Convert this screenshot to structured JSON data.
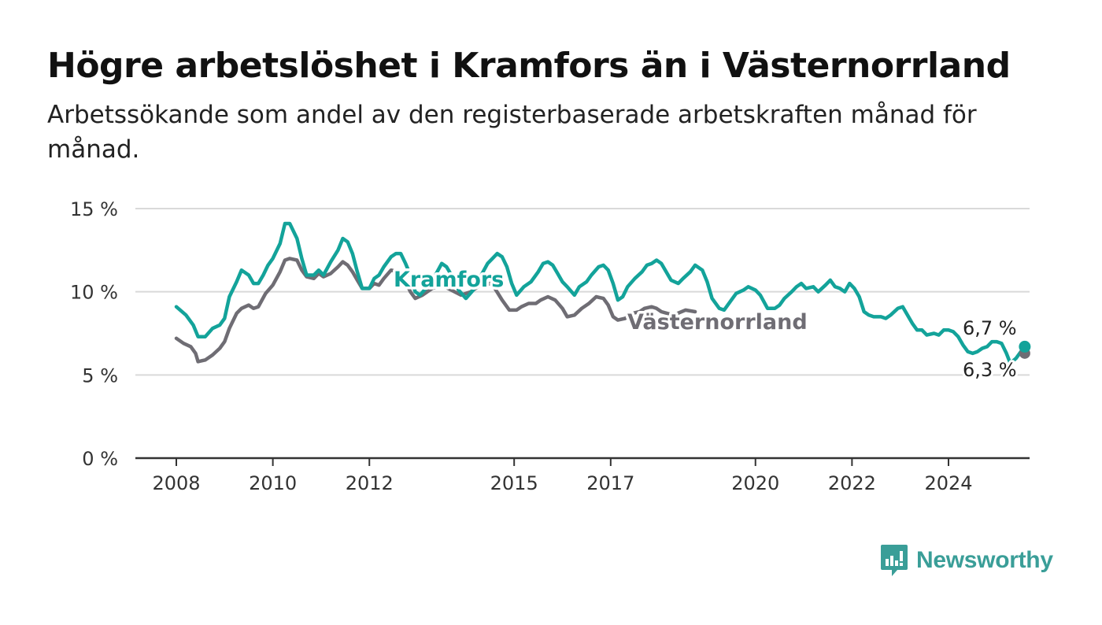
{
  "title": "Högre arbetslöshet i Kramfors än i Västernorrland",
  "subtitle": "Arbetssökande som andel av den registerbaserade arbetskraften månad för månad.",
  "brand": "Newsworthy",
  "colors": {
    "kramfors": "#13a39a",
    "vasternorrland": "#6f6d74",
    "grid": "#d9d9d9",
    "axis": "#333333",
    "brand": "#3a9e98"
  },
  "chart_data": {
    "type": "line",
    "x_unit": "year (decimal, monthly data)",
    "y_ticks": [
      0,
      5,
      10,
      15
    ],
    "y_tick_labels": [
      "0 %",
      "5 %",
      "10 %",
      "15 %"
    ],
    "x_ticks": [
      2008,
      2010,
      2012,
      2015,
      2017,
      2020,
      2022,
      2024
    ],
    "x_tick_labels": [
      "2008",
      "2010",
      "2012",
      "2015",
      "2017",
      "2020",
      "2022",
      "2024"
    ],
    "ylim": [
      0,
      15
    ],
    "xlim": [
      2007.2,
      2025.7
    ],
    "grid": "horizontal",
    "series": [
      {
        "name": "Kramfors",
        "color_key": "kramfors",
        "end_label": "6,7 %",
        "points": [
          [
            2008.0,
            9.1
          ],
          [
            2008.2,
            8.6
          ],
          [
            2008.35,
            8.0
          ],
          [
            2008.45,
            7.3
          ],
          [
            2008.6,
            7.3
          ],
          [
            2008.75,
            7.8
          ],
          [
            2008.9,
            8.0
          ],
          [
            2009.0,
            8.4
          ],
          [
            2009.1,
            9.7
          ],
          [
            2009.25,
            10.6
          ],
          [
            2009.35,
            11.3
          ],
          [
            2009.5,
            11.0
          ],
          [
            2009.6,
            10.5
          ],
          [
            2009.7,
            10.5
          ],
          [
            2009.8,
            11.0
          ],
          [
            2009.9,
            11.6
          ],
          [
            2010.0,
            12.0
          ],
          [
            2010.15,
            12.9
          ],
          [
            2010.25,
            14.1
          ],
          [
            2010.35,
            14.1
          ],
          [
            2010.5,
            13.2
          ],
          [
            2010.6,
            12.0
          ],
          [
            2010.7,
            11.0
          ],
          [
            2010.85,
            11.0
          ],
          [
            2010.95,
            11.3
          ],
          [
            2011.05,
            11.0
          ],
          [
            2011.2,
            11.8
          ],
          [
            2011.35,
            12.5
          ],
          [
            2011.45,
            13.2
          ],
          [
            2011.55,
            13.0
          ],
          [
            2011.65,
            12.3
          ],
          [
            2011.75,
            11.2
          ],
          [
            2011.85,
            10.2
          ],
          [
            2012.0,
            10.2
          ],
          [
            2012.1,
            10.8
          ],
          [
            2012.2,
            11.0
          ],
          [
            2012.3,
            11.5
          ],
          [
            2012.45,
            12.1
          ],
          [
            2012.55,
            12.3
          ],
          [
            2012.65,
            12.3
          ],
          [
            2012.75,
            11.7
          ],
          [
            2012.85,
            11.0
          ],
          [
            2012.95,
            10.0
          ],
          [
            2013.05,
            9.8
          ],
          [
            2013.2,
            10.3
          ],
          [
            2013.35,
            10.9
          ],
          [
            2013.5,
            11.7
          ],
          [
            2013.6,
            11.5
          ],
          [
            2013.7,
            11.0
          ],
          [
            2013.85,
            10.1
          ],
          [
            2014.0,
            9.6
          ],
          [
            2014.15,
            10.1
          ],
          [
            2014.3,
            10.9
          ],
          [
            2014.45,
            11.7
          ],
          [
            2014.55,
            12.0
          ],
          [
            2014.65,
            12.3
          ],
          [
            2014.75,
            12.1
          ],
          [
            2014.85,
            11.5
          ],
          [
            2014.95,
            10.5
          ],
          [
            2015.05,
            9.8
          ],
          [
            2015.2,
            10.3
          ],
          [
            2015.35,
            10.6
          ],
          [
            2015.5,
            11.2
          ],
          [
            2015.6,
            11.7
          ],
          [
            2015.7,
            11.8
          ],
          [
            2015.8,
            11.6
          ],
          [
            2015.9,
            11.1
          ],
          [
            2016.0,
            10.6
          ],
          [
            2016.1,
            10.3
          ],
          [
            2016.25,
            9.8
          ],
          [
            2016.35,
            10.3
          ],
          [
            2016.5,
            10.6
          ],
          [
            2016.6,
            11.0
          ],
          [
            2016.75,
            11.5
          ],
          [
            2016.85,
            11.6
          ],
          [
            2016.95,
            11.3
          ],
          [
            2017.05,
            10.5
          ],
          [
            2017.15,
            9.5
          ],
          [
            2017.25,
            9.7
          ],
          [
            2017.35,
            10.3
          ],
          [
            2017.5,
            10.8
          ],
          [
            2017.65,
            11.2
          ],
          [
            2017.75,
            11.6
          ],
          [
            2017.85,
            11.7
          ],
          [
            2017.95,
            11.9
          ],
          [
            2018.05,
            11.7
          ],
          [
            2018.15,
            11.2
          ],
          [
            2018.25,
            10.7
          ],
          [
            2018.4,
            10.5
          ],
          [
            2018.5,
            10.8
          ],
          [
            2018.65,
            11.2
          ],
          [
            2018.75,
            11.6
          ],
          [
            2018.9,
            11.3
          ],
          [
            2019.0,
            10.6
          ],
          [
            2019.1,
            9.6
          ],
          [
            2019.25,
            9.0
          ],
          [
            2019.35,
            8.9
          ],
          [
            2019.5,
            9.5
          ],
          [
            2019.6,
            9.9
          ],
          [
            2019.75,
            10.1
          ],
          [
            2019.85,
            10.3
          ],
          [
            2020.0,
            10.1
          ],
          [
            2020.1,
            9.8
          ],
          [
            2020.25,
            9.0
          ],
          [
            2020.4,
            9.0
          ],
          [
            2020.5,
            9.2
          ],
          [
            2020.6,
            9.6
          ],
          [
            2020.75,
            10.0
          ],
          [
            2020.85,
            10.3
          ],
          [
            2020.95,
            10.5
          ],
          [
            2021.05,
            10.2
          ],
          [
            2021.2,
            10.3
          ],
          [
            2021.3,
            10.0
          ],
          [
            2021.45,
            10.4
          ],
          [
            2021.55,
            10.7
          ],
          [
            2021.65,
            10.3
          ],
          [
            2021.75,
            10.2
          ],
          [
            2021.85,
            10.0
          ],
          [
            2021.95,
            10.5
          ],
          [
            2022.05,
            10.2
          ],
          [
            2022.15,
            9.7
          ],
          [
            2022.25,
            8.8
          ],
          [
            2022.35,
            8.6
          ],
          [
            2022.45,
            8.5
          ],
          [
            2022.6,
            8.5
          ],
          [
            2022.7,
            8.4
          ],
          [
            2022.8,
            8.6
          ],
          [
            2022.95,
            9.0
          ],
          [
            2023.05,
            9.1
          ],
          [
            2023.15,
            8.6
          ],
          [
            2023.25,
            8.1
          ],
          [
            2023.35,
            7.7
          ],
          [
            2023.45,
            7.7
          ],
          [
            2023.55,
            7.4
          ],
          [
            2023.7,
            7.5
          ],
          [
            2023.8,
            7.4
          ],
          [
            2023.9,
            7.7
          ],
          [
            2024.0,
            7.7
          ],
          [
            2024.1,
            7.6
          ],
          [
            2024.2,
            7.3
          ],
          [
            2024.3,
            6.8
          ],
          [
            2024.4,
            6.4
          ],
          [
            2024.5,
            6.3
          ],
          [
            2024.6,
            6.4
          ],
          [
            2024.7,
            6.6
          ],
          [
            2024.8,
            6.7
          ],
          [
            2024.9,
            7.0
          ],
          [
            2025.0,
            7.0
          ],
          [
            2025.1,
            6.9
          ],
          [
            2025.2,
            6.3
          ],
          [
            2025.28,
            5.7
          ],
          [
            2025.4,
            6.0
          ],
          [
            2025.5,
            6.4
          ],
          [
            2025.58,
            6.7
          ]
        ]
      },
      {
        "name": "Västernorrland",
        "color_key": "vasternorrland",
        "end_label": "6,3 %",
        "points": [
          [
            2008.0,
            7.2
          ],
          [
            2008.15,
            6.9
          ],
          [
            2008.3,
            6.7
          ],
          [
            2008.4,
            6.3
          ],
          [
            2008.45,
            5.8
          ],
          [
            2008.6,
            5.9
          ],
          [
            2008.75,
            6.2
          ],
          [
            2008.9,
            6.6
          ],
          [
            2009.0,
            7.0
          ],
          [
            2009.1,
            7.8
          ],
          [
            2009.25,
            8.7
          ],
          [
            2009.35,
            9.0
          ],
          [
            2009.5,
            9.2
          ],
          [
            2009.6,
            9.0
          ],
          [
            2009.7,
            9.1
          ],
          [
            2009.85,
            9.9
          ],
          [
            2010.0,
            10.4
          ],
          [
            2010.15,
            11.2
          ],
          [
            2010.25,
            11.9
          ],
          [
            2010.35,
            12.0
          ],
          [
            2010.5,
            11.9
          ],
          [
            2010.6,
            11.3
          ],
          [
            2010.7,
            10.9
          ],
          [
            2010.85,
            10.8
          ],
          [
            2010.95,
            11.1
          ],
          [
            2011.05,
            10.9
          ],
          [
            2011.2,
            11.1
          ],
          [
            2011.35,
            11.5
          ],
          [
            2011.45,
            11.8
          ],
          [
            2011.55,
            11.6
          ],
          [
            2011.65,
            11.2
          ],
          [
            2011.75,
            10.7
          ],
          [
            2011.85,
            10.2
          ],
          [
            2012.0,
            10.2
          ],
          [
            2012.1,
            10.5
          ],
          [
            2012.2,
            10.4
          ],
          [
            2012.3,
            10.8
          ],
          [
            2012.45,
            11.3
          ],
          [
            2012.6,
            11.2
          ],
          [
            2012.75,
            10.6
          ],
          [
            2012.85,
            10.0
          ],
          [
            2012.95,
            9.6
          ],
          [
            2013.1,
            9.8
          ],
          [
            2013.3,
            10.2
          ],
          [
            2013.5,
            10.4
          ],
          [
            2013.7,
            10.1
          ],
          [
            2013.9,
            9.8
          ],
          [
            2014.1,
            10.0
          ],
          [
            2014.3,
            10.4
          ],
          [
            2014.5,
            10.5
          ],
          [
            2014.6,
            10.2
          ],
          [
            2014.75,
            9.5
          ],
          [
            2014.9,
            8.9
          ],
          [
            2015.05,
            8.9
          ],
          [
            2015.15,
            9.1
          ],
          [
            2015.3,
            9.3
          ],
          [
            2015.45,
            9.3
          ],
          [
            2015.55,
            9.5
          ],
          [
            2015.7,
            9.7
          ],
          [
            2015.85,
            9.5
          ],
          [
            2016.0,
            9.0
          ],
          [
            2016.1,
            8.5
          ],
          [
            2016.25,
            8.6
          ],
          [
            2016.4,
            9.0
          ],
          [
            2016.55,
            9.3
          ],
          [
            2016.7,
            9.7
          ],
          [
            2016.85,
            9.6
          ],
          [
            2016.95,
            9.2
          ],
          [
            2017.05,
            8.5
          ],
          [
            2017.15,
            8.3
          ],
          [
            2017.3,
            8.4
          ],
          [
            2017.45,
            8.7
          ],
          [
            2017.6,
            8.8
          ],
          [
            2017.7,
            9.0
          ],
          [
            2017.85,
            9.1
          ],
          [
            2017.95,
            9.0
          ],
          [
            2018.05,
            8.8
          ],
          [
            2018.3,
            8.6
          ],
          [
            2018.55,
            8.9
          ],
          [
            2018.75,
            8.8
          ]
        ]
      }
    ]
  }
}
